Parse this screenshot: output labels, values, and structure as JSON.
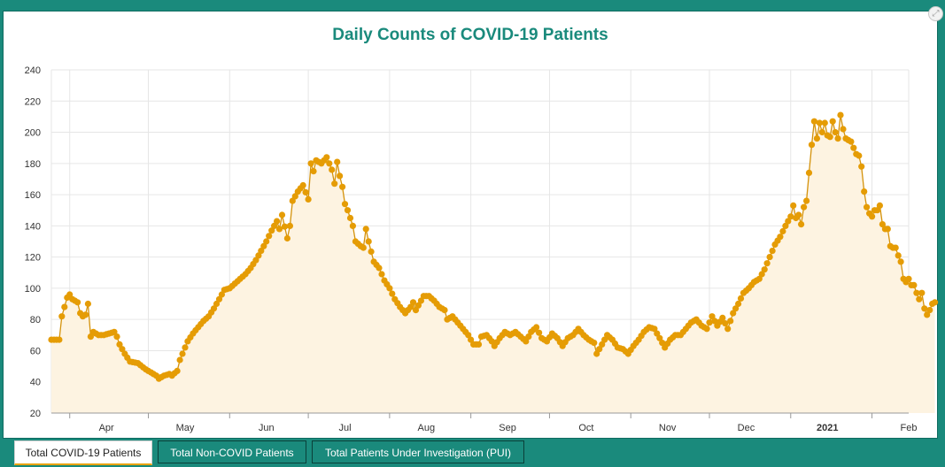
{
  "title": "Daily Counts of COVID-19 Patients",
  "tabs": [
    {
      "label": "Total COVID-19 Patients",
      "active": true
    },
    {
      "label": "Total Non-COVID Patients",
      "active": false
    },
    {
      "label": "Total Patients Under Investigation (PUI)",
      "active": false
    }
  ],
  "colors": {
    "line": "#d4920b",
    "marker": "#e59c05",
    "fill": "#fdf3e1",
    "accent": "#1a8a7c"
  },
  "chart_data": {
    "type": "line",
    "title": "Daily Counts of COVID-19 Patients",
    "xlabel": "",
    "ylabel": "",
    "ylim": [
      20,
      240
    ],
    "yticks": [
      20,
      40,
      60,
      80,
      100,
      120,
      140,
      160,
      180,
      200,
      220,
      240
    ],
    "x_start": "2020-03-25",
    "x_end": "2021-02-15",
    "month_labels": [
      "Apr",
      "May",
      "Jun",
      "Jul",
      "Aug",
      "Sep",
      "Oct",
      "Nov",
      "Dec",
      "2021",
      "Feb"
    ],
    "grid": true,
    "series": [
      {
        "name": "Total COVID-19 Patients",
        "anchors": [
          [
            0,
            67
          ],
          [
            3,
            67
          ],
          [
            4,
            82
          ],
          [
            5,
            88
          ],
          [
            6,
            94
          ],
          [
            7,
            96
          ],
          [
            8,
            93
          ],
          [
            10,
            91
          ],
          [
            11,
            84
          ],
          [
            12,
            82
          ],
          [
            13,
            83
          ],
          [
            14,
            90
          ],
          [
            15,
            69
          ],
          [
            16,
            72
          ],
          [
            18,
            70
          ],
          [
            20,
            70
          ],
          [
            22,
            71
          ],
          [
            24,
            72
          ],
          [
            25,
            69
          ],
          [
            26,
            64
          ],
          [
            28,
            58
          ],
          [
            30,
            53
          ],
          [
            33,
            52
          ],
          [
            36,
            48
          ],
          [
            38,
            46
          ],
          [
            40,
            44
          ],
          [
            41,
            42
          ],
          [
            43,
            44
          ],
          [
            45,
            45
          ],
          [
            46,
            44
          ],
          [
            48,
            47
          ],
          [
            49,
            54
          ],
          [
            50,
            58
          ],
          [
            52,
            66
          ],
          [
            54,
            71
          ],
          [
            56,
            75
          ],
          [
            58,
            79
          ],
          [
            60,
            82
          ],
          [
            62,
            87
          ],
          [
            64,
            93
          ],
          [
            66,
            99
          ],
          [
            68,
            100
          ],
          [
            70,
            103
          ],
          [
            72,
            106
          ],
          [
            74,
            109
          ],
          [
            76,
            113
          ],
          [
            78,
            118
          ],
          [
            80,
            124
          ],
          [
            82,
            130
          ],
          [
            84,
            137
          ],
          [
            86,
            143
          ],
          [
            87,
            138
          ],
          [
            88,
            147
          ],
          [
            90,
            132
          ],
          [
            91,
            140
          ],
          [
            92,
            156
          ],
          [
            94,
            162
          ],
          [
            96,
            166
          ],
          [
            98,
            157
          ],
          [
            99,
            180
          ],
          [
            100,
            175
          ],
          [
            101,
            182
          ],
          [
            103,
            180
          ],
          [
            105,
            184
          ],
          [
            107,
            176
          ],
          [
            108,
            167
          ],
          [
            109,
            181
          ],
          [
            110,
            172
          ],
          [
            111,
            165
          ],
          [
            112,
            154
          ],
          [
            113,
            150
          ],
          [
            115,
            140
          ],
          [
            116,
            130
          ],
          [
            118,
            127
          ],
          [
            119,
            126
          ],
          [
            120,
            138
          ],
          [
            121,
            130
          ],
          [
            123,
            117
          ],
          [
            125,
            113
          ],
          [
            127,
            105
          ],
          [
            129,
            100
          ],
          [
            131,
            93
          ],
          [
            133,
            88
          ],
          [
            135,
            84
          ],
          [
            137,
            88
          ],
          [
            138,
            91
          ],
          [
            139,
            86
          ],
          [
            141,
            92
          ],
          [
            142,
            95
          ],
          [
            144,
            95
          ],
          [
            146,
            92
          ],
          [
            148,
            88
          ],
          [
            150,
            86
          ],
          [
            151,
            80
          ],
          [
            153,
            82
          ],
          [
            155,
            78
          ],
          [
            157,
            74
          ],
          [
            159,
            70
          ],
          [
            161,
            64
          ],
          [
            163,
            64
          ],
          [
            164,
            69
          ],
          [
            166,
            70
          ],
          [
            168,
            66
          ],
          [
            169,
            63
          ],
          [
            171,
            68
          ],
          [
            173,
            72
          ],
          [
            175,
            70
          ],
          [
            177,
            72
          ],
          [
            179,
            69
          ],
          [
            181,
            66
          ],
          [
            183,
            72
          ],
          [
            185,
            75
          ],
          [
            187,
            68
          ],
          [
            189,
            66
          ],
          [
            191,
            71
          ],
          [
            193,
            68
          ],
          [
            195,
            63
          ],
          [
            197,
            68
          ],
          [
            199,
            70
          ],
          [
            201,
            74
          ],
          [
            203,
            70
          ],
          [
            205,
            67
          ],
          [
            207,
            65
          ],
          [
            208,
            58
          ],
          [
            210,
            64
          ],
          [
            212,
            70
          ],
          [
            214,
            67
          ],
          [
            216,
            62
          ],
          [
            218,
            61
          ],
          [
            220,
            58
          ],
          [
            222,
            63
          ],
          [
            224,
            67
          ],
          [
            226,
            72
          ],
          [
            228,
            75
          ],
          [
            230,
            74
          ],
          [
            232,
            68
          ],
          [
            234,
            62
          ],
          [
            236,
            67
          ],
          [
            238,
            70
          ],
          [
            240,
            70
          ],
          [
            242,
            74
          ],
          [
            244,
            78
          ],
          [
            246,
            80
          ],
          [
            248,
            76
          ],
          [
            250,
            74
          ],
          [
            252,
            82
          ],
          [
            254,
            76
          ],
          [
            256,
            81
          ],
          [
            258,
            74
          ],
          [
            260,
            84
          ],
          [
            262,
            90
          ],
          [
            264,
            97
          ],
          [
            266,
            100
          ],
          [
            268,
            104
          ],
          [
            270,
            106
          ],
          [
            272,
            112
          ],
          [
            274,
            120
          ],
          [
            276,
            128
          ],
          [
            278,
            133
          ],
          [
            280,
            140
          ],
          [
            282,
            146
          ],
          [
            283,
            153
          ],
          [
            284,
            145
          ],
          [
            285,
            147
          ],
          [
            286,
            141
          ],
          [
            287,
            152
          ],
          [
            288,
            156
          ],
          [
            289,
            174
          ],
          [
            290,
            192
          ],
          [
            291,
            207
          ],
          [
            292,
            196
          ],
          [
            293,
            206
          ],
          [
            294,
            200
          ],
          [
            295,
            206
          ],
          [
            296,
            198
          ],
          [
            297,
            197
          ],
          [
            298,
            207
          ],
          [
            299,
            200
          ],
          [
            300,
            196
          ],
          [
            301,
            211
          ],
          [
            302,
            202
          ],
          [
            303,
            196
          ],
          [
            304,
            195
          ],
          [
            305,
            194
          ],
          [
            306,
            190
          ],
          [
            307,
            186
          ],
          [
            308,
            185
          ],
          [
            309,
            178
          ],
          [
            310,
            162
          ],
          [
            311,
            152
          ],
          [
            312,
            148
          ],
          [
            313,
            146
          ],
          [
            314,
            150
          ],
          [
            315,
            150
          ],
          [
            316,
            153
          ],
          [
            317,
            141
          ],
          [
            318,
            138
          ],
          [
            319,
            138
          ],
          [
            320,
            127
          ],
          [
            321,
            126
          ],
          [
            322,
            126
          ],
          [
            323,
            121
          ],
          [
            324,
            117
          ],
          [
            325,
            106
          ],
          [
            326,
            104
          ],
          [
            327,
            106
          ],
          [
            328,
            102
          ],
          [
            329,
            102
          ],
          [
            330,
            97
          ],
          [
            331,
            93
          ],
          [
            332,
            97
          ],
          [
            333,
            87
          ],
          [
            334,
            83
          ],
          [
            335,
            86
          ],
          [
            336,
            90
          ],
          [
            337,
            91
          ]
        ]
      }
    ]
  }
}
